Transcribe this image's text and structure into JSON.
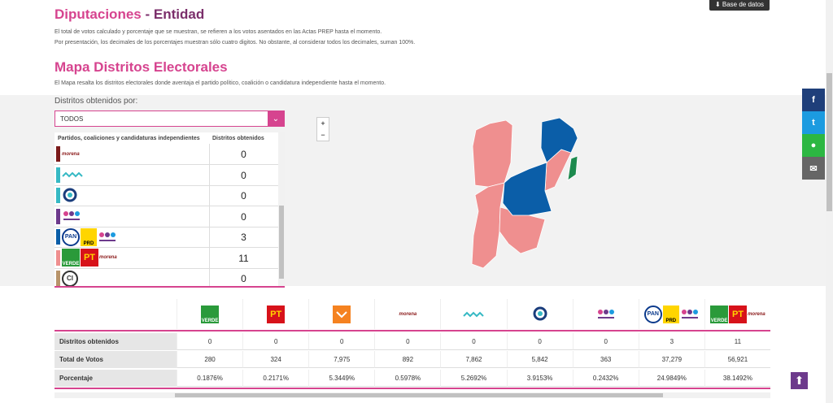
{
  "header": {
    "title": "Diputaciones",
    "title_suffix": "- Entidad",
    "download_button": "Base de datos",
    "notes": [
      "El total de votos calculado y porcentaje que se muestran, se refieren a los votos asentados en las Actas PREP hasta el momento.",
      "Por presentación, los decimales de los porcentajes muestran sólo cuatro digitos. No obstante, al considerar todos los decimales, suman 100%."
    ]
  },
  "map_section": {
    "title": "Mapa Distritos Electorales",
    "note": "El Mapa resalta los distritos electorales donde aventaja el partido político, coalición o candidatura independiente hasta el momento.",
    "filter_label": "Distritos obtenidos por:",
    "filter_value": "TODOS",
    "zoom_in": "+",
    "zoom_out": "−"
  },
  "district_table": {
    "columns": [
      "Partidos, coaliciones y candidaturas independientes",
      "Distritos obtenidos"
    ],
    "rows": [
      {
        "logo_texts": [
          "morena"
        ],
        "districts": "0"
      },
      {
        "districts": "0"
      },
      {
        "districts": "0"
      },
      {
        "districts": "0"
      },
      {
        "logo_texts": [
          "PAN",
          "PRD"
        ],
        "districts": "3"
      },
      {
        "logo_texts": [
          "VERDE",
          "PT",
          "morena"
        ],
        "districts": "11"
      },
      {
        "logo_texts": [
          "CI"
        ],
        "districts": "0"
      }
    ]
  },
  "results_table": {
    "columns": [
      {
        "logo_texts": [
          "VERDE"
        ]
      },
      {
        "logo_texts": [
          "PT"
        ]
      },
      {},
      {
        "logo_texts": [
          "morena"
        ]
      },
      {},
      {},
      {},
      {
        "logo_texts": [
          "PAN",
          "PRD"
        ]
      },
      {
        "logo_texts": [
          "VERDE",
          "PT",
          "morena"
        ]
      }
    ],
    "rows": [
      {
        "label": "Distritos obtenidos",
        "values": [
          "0",
          "0",
          "0",
          "0",
          "0",
          "0",
          "0",
          "3",
          "11"
        ]
      },
      {
        "label": "Total de Votos",
        "values": [
          "280",
          "324",
          "7,975",
          "892",
          "7,862",
          "5,842",
          "363",
          "37,279",
          "56,921"
        ]
      },
      {
        "label": "Porcentaje",
        "values": [
          "0.1876%",
          "0.2171%",
          "5.3449%",
          "0.5978%",
          "5.2692%",
          "3.9153%",
          "0.2432%",
          "24.9849%",
          "38.1492%"
        ]
      }
    ]
  }
}
